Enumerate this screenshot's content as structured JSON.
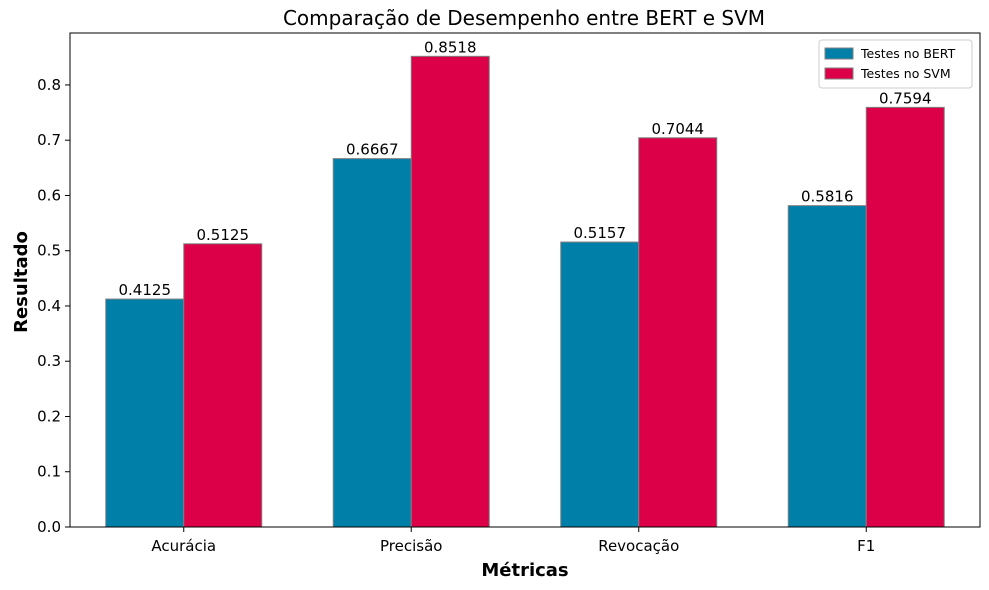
{
  "chart_data": {
    "type": "bar",
    "title": "Comparação de Desempenho entre BERT e SVM",
    "xlabel": "Métricas",
    "ylabel": "Resultado",
    "categories": [
      "Acurácia",
      "Precisão",
      "Revocação",
      "F1"
    ],
    "series": [
      {
        "name": "Testes no BERT",
        "color": "#007fa9",
        "values": [
          0.4125,
          0.6667,
          0.5157,
          0.5816
        ],
        "labels": [
          "0.4125",
          "0.6667",
          "0.5157",
          "0.5816"
        ]
      },
      {
        "name": "Testes no SVM",
        "color": "#db0047",
        "values": [
          0.5125,
          0.8518,
          0.7044,
          0.7594
        ],
        "labels": [
          "0.5125",
          "0.8518",
          "0.7044",
          "0.7594"
        ]
      }
    ],
    "ylim": [
      0,
      0.894
    ],
    "yticks": [
      0.0,
      0.1,
      0.2,
      0.3,
      0.4,
      0.5,
      0.6,
      0.7,
      0.8
    ],
    "ytick_labels": [
      "0.0",
      "0.1",
      "0.2",
      "0.3",
      "0.4",
      "0.5",
      "0.6",
      "0.7",
      "0.8"
    ],
    "grid": false,
    "legend_position": "top-right",
    "bar_edge_color": "#808080"
  }
}
